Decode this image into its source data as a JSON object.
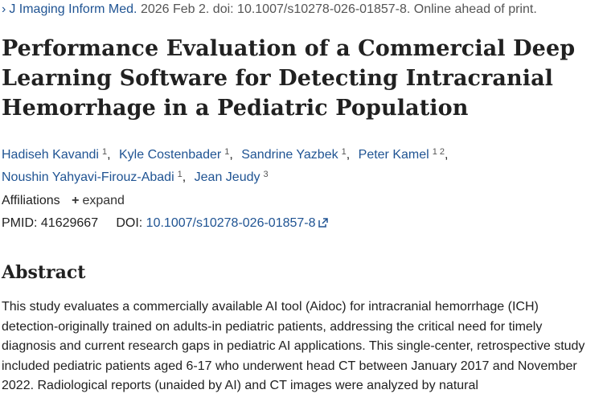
{
  "citation": {
    "chevron": "›",
    "journal": "J Imaging Inform Med.",
    "details": "2026 Feb 2. doi: 10.1007/s10278-026-01857-8. Online ahead of print."
  },
  "title": "Performance Evaluation of a Commercial Deep Learning Software for Detecting Intracranial Hemorrhage in a Pediatric Population",
  "authors": [
    {
      "name": "Hadiseh Kavandi",
      "aff": "1"
    },
    {
      "name": "Kyle Costenbader",
      "aff": "1"
    },
    {
      "name": "Sandrine Yazbek",
      "aff": "1"
    },
    {
      "name": "Peter Kamel",
      "aff": "1 2"
    },
    {
      "name": "Noushin Yahyavi-Firouz-Abadi",
      "aff": "1"
    },
    {
      "name": "Jean Jeudy",
      "aff": "3"
    }
  ],
  "affiliations": {
    "label": "Affiliations",
    "expand_icon": "+",
    "expand_label": "expand"
  },
  "ids": {
    "pmid_label": "PMID:",
    "pmid": "41629667",
    "doi_label": "DOI:",
    "doi": "10.1007/s10278-026-01857-8"
  },
  "abstract": {
    "heading": "Abstract",
    "text": "This study evaluates a commercially available AI tool (Aidoc) for intracranial hemorrhage (ICH) detection-originally trained on adults-in pediatric patients, addressing the critical need for timely diagnosis and current research gaps in pediatric AI applications. This single-center, retrospective study included pediatric patients aged 6-17 who underwent head CT between January 2017 and November 2022. Radiological reports (unaided by AI) and CT images were analyzed by natural"
  }
}
